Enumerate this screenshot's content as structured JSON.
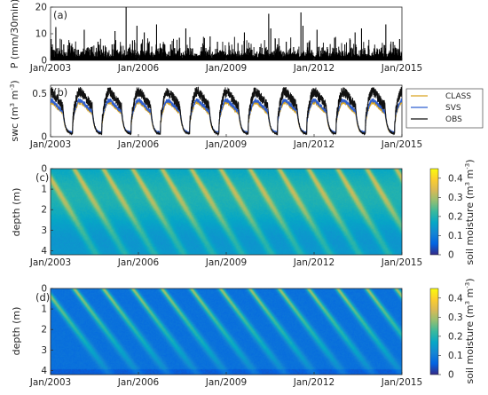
{
  "chart_data": [
    {
      "type": "bar",
      "panel_label": "(a)",
      "ylabel": "P (mm/30min)",
      "ylim": [
        0,
        20
      ],
      "yticks": [
        0,
        10,
        20
      ],
      "x_range": [
        2003.0,
        2015.0
      ],
      "x_tick_labels": [
        "Jan/2003",
        "Jan/2006",
        "Jan/2009",
        "Jan/2012",
        "Jan/2015"
      ],
      "x_tick_values": [
        2003,
        2006,
        2009,
        2012,
        2015
      ],
      "peaks": [
        {
          "x": 2003.02,
          "y": 8.0
        },
        {
          "x": 2003.18,
          "y": 12.5
        },
        {
          "x": 2003.45,
          "y": 6.0
        },
        {
          "x": 2003.7,
          "y": 5.5
        },
        {
          "x": 2003.95,
          "y": 4.0
        },
        {
          "x": 2004.15,
          "y": 11.5
        },
        {
          "x": 2004.4,
          "y": 5.0
        },
        {
          "x": 2004.62,
          "y": 7.0
        },
        {
          "x": 2004.8,
          "y": 5.5
        },
        {
          "x": 2005.1,
          "y": 6.0
        },
        {
          "x": 2005.2,
          "y": 11.0
        },
        {
          "x": 2005.4,
          "y": 5.5
        },
        {
          "x": 2005.58,
          "y": 20.0
        },
        {
          "x": 2005.8,
          "y": 7.5
        },
        {
          "x": 2005.95,
          "y": 13.0
        },
        {
          "x": 2006.2,
          "y": 10.5
        },
        {
          "x": 2006.35,
          "y": 6.5
        },
        {
          "x": 2006.62,
          "y": 13.5
        },
        {
          "x": 2006.85,
          "y": 5.0
        },
        {
          "x": 2007.1,
          "y": 6.0
        },
        {
          "x": 2007.4,
          "y": 8.5
        },
        {
          "x": 2007.62,
          "y": 12.0
        },
        {
          "x": 2007.85,
          "y": 4.5
        },
        {
          "x": 2008.15,
          "y": 5.0
        },
        {
          "x": 2008.45,
          "y": 9.0
        },
        {
          "x": 2008.7,
          "y": 7.0
        },
        {
          "x": 2009.1,
          "y": 5.5
        },
        {
          "x": 2009.4,
          "y": 6.5
        },
        {
          "x": 2009.62,
          "y": 10.5
        },
        {
          "x": 2009.88,
          "y": 4.0
        },
        {
          "x": 2010.15,
          "y": 5.0
        },
        {
          "x": 2010.45,
          "y": 17.5
        },
        {
          "x": 2010.52,
          "y": 12.0
        },
        {
          "x": 2010.75,
          "y": 6.0
        },
        {
          "x": 2011.05,
          "y": 7.0
        },
        {
          "x": 2011.3,
          "y": 5.0
        },
        {
          "x": 2011.55,
          "y": 18.0
        },
        {
          "x": 2011.62,
          "y": 13.0
        },
        {
          "x": 2011.85,
          "y": 7.5
        },
        {
          "x": 2012.1,
          "y": 11.5
        },
        {
          "x": 2012.45,
          "y": 5.0
        },
        {
          "x": 2012.7,
          "y": 8.5
        },
        {
          "x": 2013.05,
          "y": 6.0
        },
        {
          "x": 2013.4,
          "y": 10.5
        },
        {
          "x": 2013.62,
          "y": 12.0
        },
        {
          "x": 2013.85,
          "y": 5.5
        },
        {
          "x": 2014.15,
          "y": 4.5
        },
        {
          "x": 2014.45,
          "y": 13.5
        },
        {
          "x": 2014.7,
          "y": 7.0
        },
        {
          "x": 2014.92,
          "y": 8.0
        }
      ]
    },
    {
      "type": "line",
      "panel_label": "(b)",
      "ylabel": "swc (m",
      "ylabel_sup1": "3",
      "ylabel_mid": " m",
      "ylabel_sup2": "-3",
      "ylabel_end": ")",
      "ylim": [
        0,
        0.6
      ],
      "yticks": [
        0,
        0.5
      ],
      "x_range": [
        2003.0,
        2015.0
      ],
      "x_tick_labels": [
        "Jan/2003",
        "Jan/2006",
        "Jan/2009",
        "Jan/2012",
        "Jan/2015"
      ],
      "x_tick_values": [
        2003,
        2006,
        2009,
        2012,
        2015
      ],
      "season": {
        "wet_start": 0.75,
        "peak": 0.95,
        "wet_end": 0.42
      },
      "series": [
        {
          "name": "CLASS",
          "color": "#d9a521",
          "low": 0.04,
          "high": 0.4
        },
        {
          "name": "SVS",
          "color": "#2f5fd0",
          "low": 0.05,
          "high": 0.42
        },
        {
          "name": "OBS",
          "color": "#111111",
          "low": 0.03,
          "high": 0.52
        }
      ],
      "legend_position": "right"
    },
    {
      "type": "heatmap",
      "panel_label": "(c)",
      "ylabel": "depth (m)",
      "ylim": [
        4.2,
        0
      ],
      "yticks": [
        0,
        1,
        2,
        3,
        4
      ],
      "x_range": [
        2003.0,
        2015.0
      ],
      "x_tick_labels": [
        "Jan/2003",
        "Jan/2006",
        "Jan/2009",
        "Jan/2012",
        "Jan/2015"
      ],
      "x_tick_values": [
        2003,
        2006,
        2009,
        2012,
        2015
      ],
      "colorbar_label": "soil moisture (m",
      "colorbar_sup1": "3",
      "colorbar_mid": " m",
      "colorbar_sup2": "-3",
      "colorbar_end": ")",
      "clim": [
        0,
        0.45
      ],
      "colorbar_ticks": [
        0,
        0.1,
        0.2,
        0.3,
        0.4
      ],
      "colormap": "parula",
      "base_moisture": 0.17,
      "wet_pulse_peak": 0.32
    },
    {
      "type": "heatmap",
      "panel_label": "(d)",
      "ylabel": "depth (m)",
      "ylim": [
        4.2,
        0
      ],
      "yticks": [
        0,
        1,
        2,
        3,
        4
      ],
      "x_range": [
        2003.0,
        2015.0
      ],
      "x_tick_labels": [
        "Jan/2003",
        "Jan/2006",
        "Jan/2009",
        "Jan/2012",
        "Jan/2015"
      ],
      "x_tick_values": [
        2003,
        2006,
        2009,
        2012,
        2015
      ],
      "colorbar_label": "soil moisture (m",
      "colorbar_sup1": "3",
      "colorbar_mid": " m",
      "colorbar_sup2": "-3",
      "colorbar_end": ")",
      "clim": [
        0,
        0.45
      ],
      "colorbar_ticks": [
        0,
        0.1,
        0.2,
        0.3,
        0.4
      ],
      "colormap": "parula",
      "base_moisture": 0.08,
      "wet_pulse_peak": 0.3
    }
  ]
}
